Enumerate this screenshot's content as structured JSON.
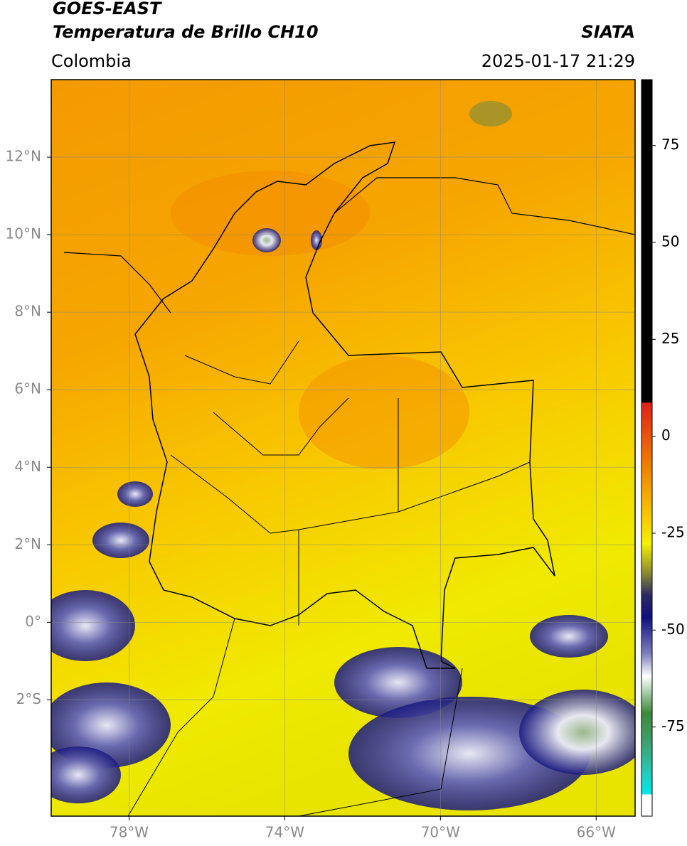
{
  "header": {
    "title": "GOES-EAST",
    "subtitle": "Temperatura de Brillo CH10",
    "region": "Colombia",
    "source": "SIATA",
    "datetime": "2025-01-17 21:29"
  },
  "map": {
    "xlim": [
      -80,
      -65
    ],
    "ylim": [
      -5,
      14
    ],
    "xticks": [
      {
        "value": -78,
        "label": "78°W"
      },
      {
        "value": -74,
        "label": "74°W"
      },
      {
        "value": -70,
        "label": "70°W"
      },
      {
        "value": -66,
        "label": "66°W"
      }
    ],
    "yticks": [
      {
        "value": 12,
        "label": "12°N"
      },
      {
        "value": 10,
        "label": "10°N"
      },
      {
        "value": 8,
        "label": "8°N"
      },
      {
        "value": 6,
        "label": "6°N"
      },
      {
        "value": 4,
        "label": "4°N"
      },
      {
        "value": 2,
        "label": "2°N"
      },
      {
        "value": 0,
        "label": "0°"
      },
      {
        "value": -2,
        "label": "2°S"
      }
    ],
    "grid": true
  },
  "colorbar": {
    "lim": [
      -98,
      92
    ],
    "ticks": [
      75,
      50,
      25,
      0,
      -25,
      -50,
      -75
    ]
  }
}
